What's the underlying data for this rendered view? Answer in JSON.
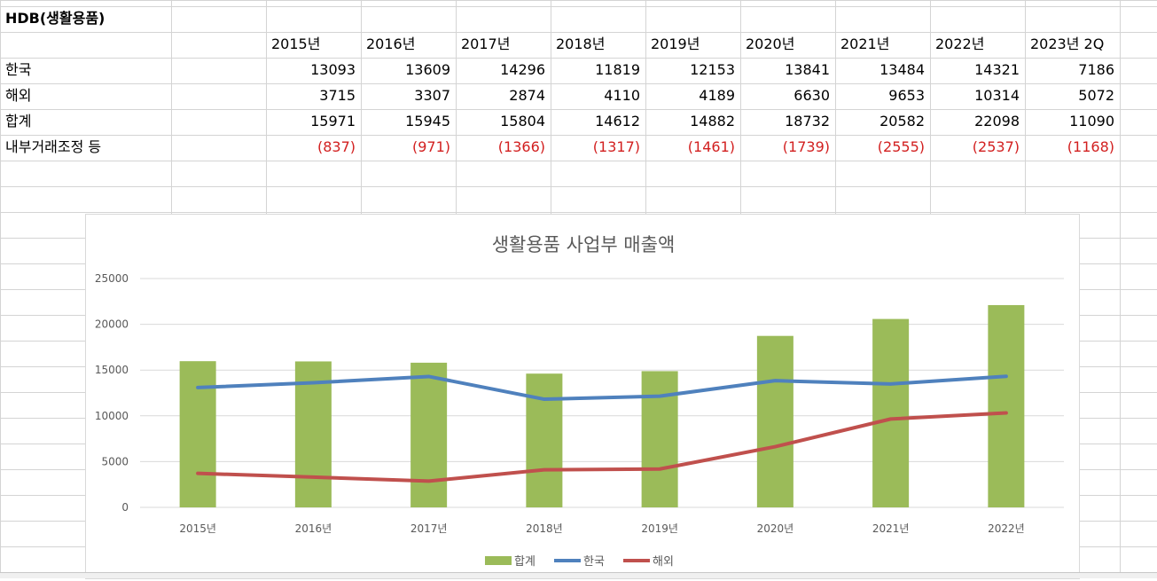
{
  "sheet": {
    "title": "HDB(생활용품)",
    "years": [
      "2015년",
      "2016년",
      "2017년",
      "2018년",
      "2019년",
      "2020년",
      "2021년",
      "2022년",
      "2023년 2Q"
    ],
    "rows": [
      {
        "label": "한국",
        "values": [
          "13093",
          "13609",
          "14296",
          "11819",
          "12153",
          "13841",
          "13484",
          "14321",
          "7186"
        ],
        "negative": false
      },
      {
        "label": "해외",
        "values": [
          "3715",
          "3307",
          "2874",
          "4110",
          "4189",
          "6630",
          "9653",
          "10314",
          "5072"
        ],
        "negative": false
      },
      {
        "label": "합계",
        "values": [
          "15971",
          "15945",
          "15804",
          "14612",
          "14882",
          "18732",
          "20582",
          "22098",
          "11090"
        ],
        "negative": false
      },
      {
        "label": "내부거래조정 등",
        "values": [
          "(837)",
          "(971)",
          "(1366)",
          "(1317)",
          "(1461)",
          "(1739)",
          "(2555)",
          "(2537)",
          "(1168)"
        ],
        "negative": true
      }
    ]
  },
  "colors": {
    "grid": "#d4d4d4",
    "negative": "#d21f1f",
    "bar": "#9bbb59",
    "line_korea": "#4f81bd",
    "line_overseas": "#c0504d",
    "chart_gridline": "#d9d9d9",
    "axis_text": "#595959",
    "title_text": "#595959"
  },
  "chart_data": {
    "type": "bar",
    "title": "생활용품 사업부 매출액",
    "categories": [
      "2015년",
      "2016년",
      "2017년",
      "2018년",
      "2019년",
      "2020년",
      "2021년",
      "2022년"
    ],
    "ylim": [
      0,
      25000
    ],
    "yticks": [
      "0",
      "5000",
      "10000",
      "15000",
      "20000",
      "25000"
    ],
    "grid": true,
    "legend_position": "bottom",
    "series": [
      {
        "name": "합계",
        "kind": "bar",
        "color": "#9bbb59",
        "values": [
          15971,
          15945,
          15804,
          14612,
          14882,
          18732,
          20582,
          22098
        ]
      },
      {
        "name": "한국",
        "kind": "line",
        "color": "#4f81bd",
        "values": [
          13093,
          13609,
          14296,
          11819,
          12153,
          13841,
          13484,
          14321
        ]
      },
      {
        "name": "해외",
        "kind": "line",
        "color": "#c0504d",
        "values": [
          3715,
          3307,
          2874,
          4110,
          4189,
          6630,
          9653,
          10314
        ]
      }
    ]
  }
}
